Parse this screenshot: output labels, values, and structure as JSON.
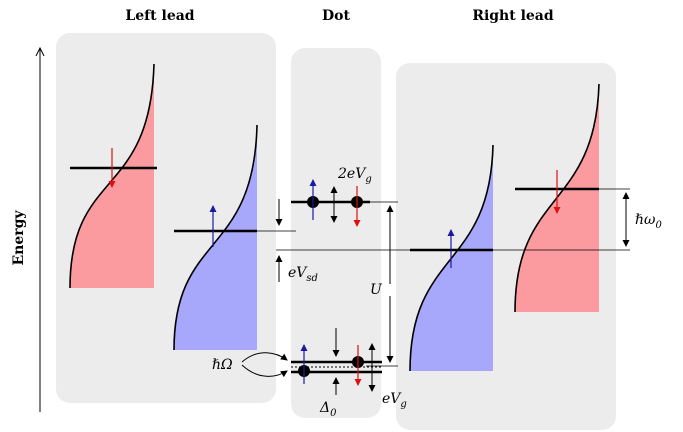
{
  "headers": {
    "left_lead": "Left lead",
    "dot": "Dot",
    "right_lead": "Right lead"
  },
  "axis": {
    "label": "Energy"
  },
  "labels": {
    "two_e_vg": "2eV",
    "two_e_vg_sub": "g",
    "hbar_omega0": "ℏω",
    "hbar_omega0_sub": "0",
    "e_vsd": "eV",
    "e_vsd_sub": "sd",
    "u": "U",
    "hbar_big_omega": "ℏΩ",
    "delta0": "Δ",
    "delta0_sub": "0",
    "e_vg": "eV",
    "e_vg_sub": "g"
  },
  "colors": {
    "panel": "#ececec",
    "spin_up_fill": "#a7a7fb",
    "spin_down_fill": "#fb9a9f",
    "spin_up_arrow": "#1a1aa0",
    "spin_down_arrow": "#e01010",
    "line": "#000000"
  }
}
